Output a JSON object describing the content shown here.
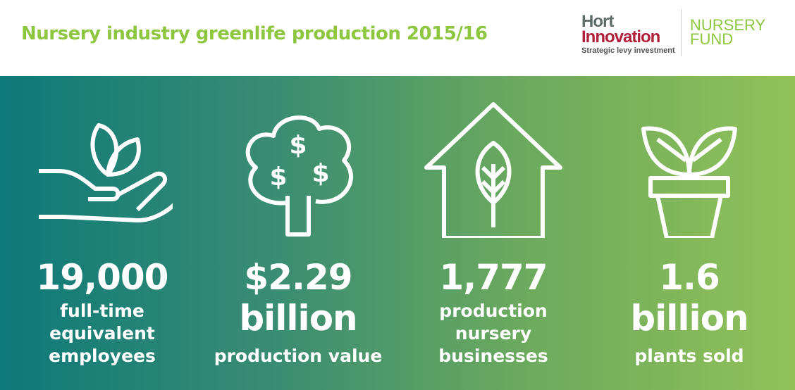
{
  "header": {
    "title": "Nursery industry greenlife production 2015/16",
    "logo": {
      "line1": "Hort",
      "line2": "Innovation",
      "tagline": "Strategic levy investment",
      "fund_line1": "NURSERY",
      "fund_line2": "FUND"
    }
  },
  "colors": {
    "title": "#8dc63f",
    "gradient_start": "#0e7979",
    "gradient_end": "#92c158",
    "hort_red": "#b0203a"
  },
  "stats": [
    {
      "icon": "hand-leaves-icon",
      "value": "19,000",
      "lines": [
        "full-time",
        "equivalent",
        "employees"
      ]
    },
    {
      "icon": "money-tree-icon",
      "value": "$2.29",
      "lines": [
        "billion",
        "production value"
      ]
    },
    {
      "icon": "house-leaf-icon",
      "value": "1,777",
      "lines": [
        "production",
        "nursery",
        "businesses"
      ]
    },
    {
      "icon": "potted-plant-icon",
      "value": "1.6",
      "lines": [
        "billion",
        "plants sold"
      ]
    }
  ]
}
